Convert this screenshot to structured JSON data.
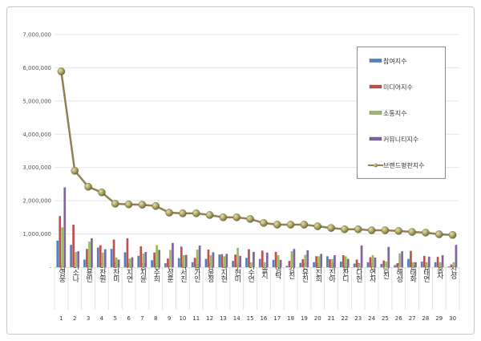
{
  "chart_data": {
    "type": "bar",
    "title": "",
    "xlabel": "",
    "ylabel": "",
    "ylim": [
      0,
      7000000
    ],
    "yticks": [
      "-",
      "1,000,000",
      "2,000,000",
      "3,000,000",
      "4,000,000",
      "5,000,000",
      "6,000,000",
      "7,000,000"
    ],
    "grid": true,
    "legend_position": "top-right",
    "categories": [
      "임영웅",
      "이소나",
      "김용빈",
      "이찬원",
      "허찬미",
      "차지연",
      "홍지윤",
      "김수희",
      "안성훈",
      "박서진",
      "송가인",
      "장윤정",
      "박지현",
      "주현미",
      "이수연",
      "솔지",
      "영탁",
      "강진",
      "전유진",
      "최진희",
      "태진아",
      "금잔디",
      "김다현",
      "김연자",
      "남진",
      "진해성",
      "윤태화",
      "김태연",
      "홍자",
      "진성"
    ],
    "ranks": [
      "1",
      "2",
      "3",
      "4",
      "5",
      "6",
      "7",
      "8",
      "9",
      "10",
      "11",
      "12",
      "13",
      "14",
      "15",
      "16",
      "17",
      "18",
      "19",
      "20",
      "21",
      "22",
      "23",
      "24",
      "25",
      "26",
      "27",
      "28",
      "29",
      "30"
    ],
    "series": [
      {
        "name": "참여지수",
        "type": "bar",
        "color": "#4f81bd",
        "values": [
          800000,
          670000,
          230000,
          590000,
          550000,
          450000,
          340000,
          210000,
          120000,
          270000,
          150000,
          250000,
          380000,
          190000,
          280000,
          250000,
          220000,
          40000,
          130000,
          150000,
          330000,
          170000,
          110000,
          150000,
          100000,
          60000,
          250000,
          170000,
          150000,
          20000
        ]
      },
      {
        "name": "미디어지수",
        "type": "bar",
        "color": "#c0504d",
        "values": [
          1540000,
          1280000,
          550000,
          660000,
          830000,
          870000,
          630000,
          440000,
          260000,
          620000,
          280000,
          530000,
          390000,
          380000,
          540000,
          500000,
          460000,
          190000,
          240000,
          330000,
          240000,
          360000,
          230000,
          300000,
          200000,
          110000,
          490000,
          340000,
          310000,
          80000
        ]
      },
      {
        "name": "소통지수",
        "type": "bar",
        "color": "#9bbb59",
        "values": [
          1200000,
          460000,
          770000,
          440000,
          290000,
          260000,
          410000,
          660000,
          520000,
          360000,
          530000,
          360000,
          330000,
          580000,
          150000,
          150000,
          360000,
          480000,
          370000,
          330000,
          250000,
          330000,
          110000,
          360000,
          170000,
          410000,
          150000,
          150000,
          150000,
          150000
        ]
      },
      {
        "name": "커뮤니티지수",
        "type": "bar",
        "color": "#8064a2",
        "values": [
          2400000,
          480000,
          870000,
          540000,
          230000,
          300000,
          460000,
          520000,
          730000,
          370000,
          650000,
          450000,
          400000,
          340000,
          460000,
          440000,
          220000,
          550000,
          510000,
          400000,
          360000,
          250000,
          650000,
          290000,
          610000,
          480000,
          150000,
          320000,
          360000,
          670000
        ]
      },
      {
        "name": "브랜드평판지수",
        "type": "line",
        "color": "#8c8254",
        "values": [
          5890000,
          2900000,
          2420000,
          2250000,
          1910000,
          1890000,
          1880000,
          1840000,
          1640000,
          1620000,
          1620000,
          1570000,
          1500000,
          1500000,
          1450000,
          1330000,
          1280000,
          1280000,
          1280000,
          1230000,
          1180000,
          1140000,
          1140000,
          1110000,
          1110000,
          1090000,
          1060000,
          1040000,
          990000,
          970000
        ]
      }
    ]
  }
}
